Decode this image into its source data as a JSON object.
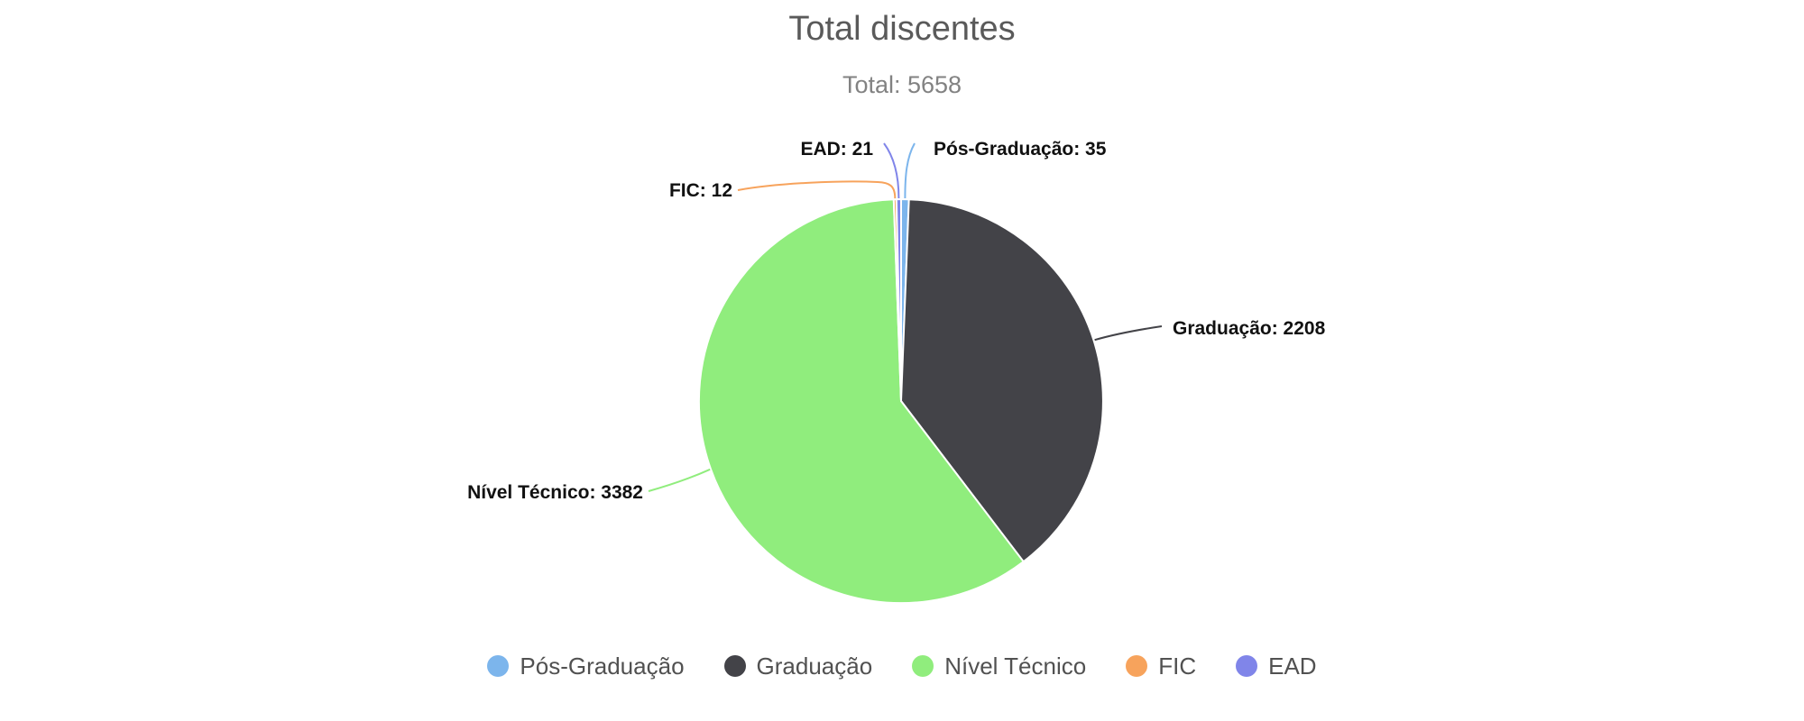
{
  "chart_data": {
    "type": "pie",
    "title": "Total discentes",
    "subtitle": "Total: 5658",
    "total": 5658,
    "legend_position": "bottom",
    "grid": false,
    "slices": [
      {
        "name": "Pós-Graduação",
        "value": 35,
        "label": "Pós-Graduação: 35",
        "color": "#7cb5ec"
      },
      {
        "name": "Graduação",
        "value": 2208,
        "label": "Graduação: 2208",
        "color": "#434348"
      },
      {
        "name": "Nível Técnico",
        "value": 3382,
        "label": "Nível Técnico: 3382",
        "color": "#90ed7d"
      },
      {
        "name": "FIC",
        "value": 12,
        "label": "FIC: 12",
        "color": "#f7a35c"
      },
      {
        "name": "EAD",
        "value": 21,
        "label": "EAD: 21",
        "color": "#8085e9"
      }
    ],
    "style_colors": {
      "title": "#5a5a5a",
      "subtitle": "#828282",
      "data_label": "#111111",
      "legend_text": "#515151",
      "slice_border": "#ffffff",
      "background": "#ffffff"
    }
  }
}
